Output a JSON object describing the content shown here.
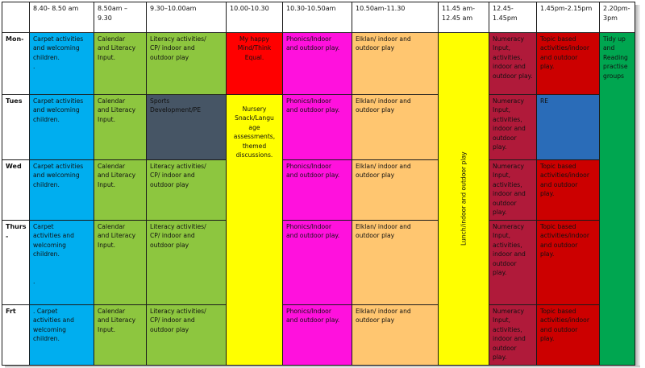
{
  "headers": {
    "h1": "8.40- 8.50 am",
    "h2": "8.50am –\n9.30",
    "h3": "9.30–10.00am",
    "h4": "10.00-10.30",
    "h5": "10.30-10.50am",
    "h6": "10.50am-11.30",
    "h7": "11.45 am-\n12.45 am",
    "h8": "12.45-\n1.45pm",
    "h9": "1.45pm-2.15pm",
    "h10": "2.20pm-\n3pm"
  },
  "days": {
    "mon": "Mon-",
    "tue": "Tues",
    "wed": "Wed",
    "thu": "Thurs\n-",
    "fri": "Frt"
  },
  "cells": {
    "mon_carpet": "Carpet activities\nand welcoming\nchildren.\n.",
    "tue_carpet": "Carpet activities\nand welcoming\nchildren.",
    "wed_carpet": "Carpet activities\nand welcoming\nchildren.",
    "thu_carpet": "   Carpet\nactivities and\nwelcoming\nchildren.\n\n\n.",
    "fri_carpet": ". Carpet\nactivities and\nwelcoming\nchildren.",
    "mon_calendar": "Calendar\nand Literacy\nInput.",
    "tue_calendar": "Calendar\nand Literacy\nInput.",
    "wed_calendar": "Calendar\nand Literacy\nInput.",
    "thu_calendar": "Calendar\nand Literacy\nInput.",
    "fri_calendar": "Calendar\nand Literacy\nInput.",
    "mon_literacy": "Literacy activities/\nCP/ indoor and\noutdoor play",
    "tue_sports": "Sports\nDevelopment/PE",
    "wed_literacy": "Literacy activities/\nCP/ indoor and\noutdoor play",
    "thu_literacy": "Literacy activities/\nCP/ indoor and\noutdoor play",
    "fri_literacy": "Literacy activities/\nCP/ indoor and\noutdoor play",
    "mon_happymind": "My happy\nMind/Think\nEqual.",
    "nursery": "Nursery\nSnack/Langu\nage\nassessments,\nthemed\ndiscussions.",
    "mon_phonics": "Phonics/Indoor\nand outdoor play.",
    "tue_phonics": "Phonics/Indoor\nand outdoor play.",
    "wed_phonics": "Phonics/Indoor\nand outdoor play.",
    "thu_phonics": "Phonics/Indoor\nand outdoor play.",
    "fri_phonics": "Phonics/Indoor\nand outdoor play.",
    "mon_elklan": "Elklan/ indoor and\noutdoor play",
    "tue_elklan": "Elklan/ indoor and\noutdoor play",
    "wed_elklan": "Elklan/ indoor and\noutdoor play",
    "thu_elklan": "Elklan/ indoor and\noutdoor play",
    "fri_elklan": "Elklan/ indoor and\noutdoor play",
    "lunch": "Lunch/indoor and outdoor play",
    "mon_numeracy": "Numeracy\nInput,\nactivities,\nindoor and\noutdoor play.",
    "tue_numeracy": "Numeracy\nInput,\nactivities,\nindoor and\noutdoor\nplay.",
    "wed_numeracy": "Numeracy\nInput,\nactivities,\nindoor and\noutdoor\nplay.",
    "thu_numeracy": "Numeracy\nInput,\nactivities,\nindoor and\noutdoor\nplay.",
    "fri_numeracy": "Numeracy\nInput,\nactivities,\nindoor and\noutdoor\nplay.",
    "mon_topic": "Topic based\nactivities/indoor\nand outdoor\nplay.",
    "tue_re": "RE",
    "wed_topic": "Topic based\nactivities/indoor\nand outdoor\nplay.",
    "thu_topic": "Topic based\nactivities/indoor\nand outdoor\nplay.",
    "fri_topic": "Topic based\nactivities/indoor\nand outdoor\nplay.",
    "tidyup": "Tidy up\nand\nReading\npractise\ngroups"
  }
}
